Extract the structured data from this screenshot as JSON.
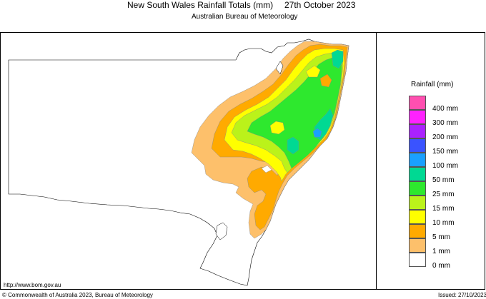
{
  "title_main": "New South Wales Rainfall Totals (mm)",
  "title_date": "27th October 2023",
  "subtitle": "Australian Bureau of Meteorology",
  "url_text": "http://www.bom.gov.au",
  "copyright": "© Commonwealth of Australia 2023, Bureau of Meteorology",
  "issued": "Issued: 27/10/2023",
  "legend": {
    "title": "Rainfall (mm)",
    "items": [
      {
        "label": "400 mm",
        "color": "#ff4fb0"
      },
      {
        "label": "300 mm",
        "color": "#ff22ff"
      },
      {
        "label": "200 mm",
        "color": "#aa22ff"
      },
      {
        "label": "150 mm",
        "color": "#3a53ff"
      },
      {
        "label": "100 mm",
        "color": "#1aa0ff"
      },
      {
        "label": "50 mm",
        "color": "#00d993"
      },
      {
        "label": "25 mm",
        "color": "#2ee82e"
      },
      {
        "label": "15 mm",
        "color": "#bbf21a"
      },
      {
        "label": "10 mm",
        "color": "#ffff00"
      },
      {
        "label": "5 mm",
        "color": "#ffaa00"
      },
      {
        "label": "1 mm",
        "color": "#fdc06b"
      },
      {
        "label": "0 mm",
        "color": "#ffffff"
      }
    ]
  }
}
